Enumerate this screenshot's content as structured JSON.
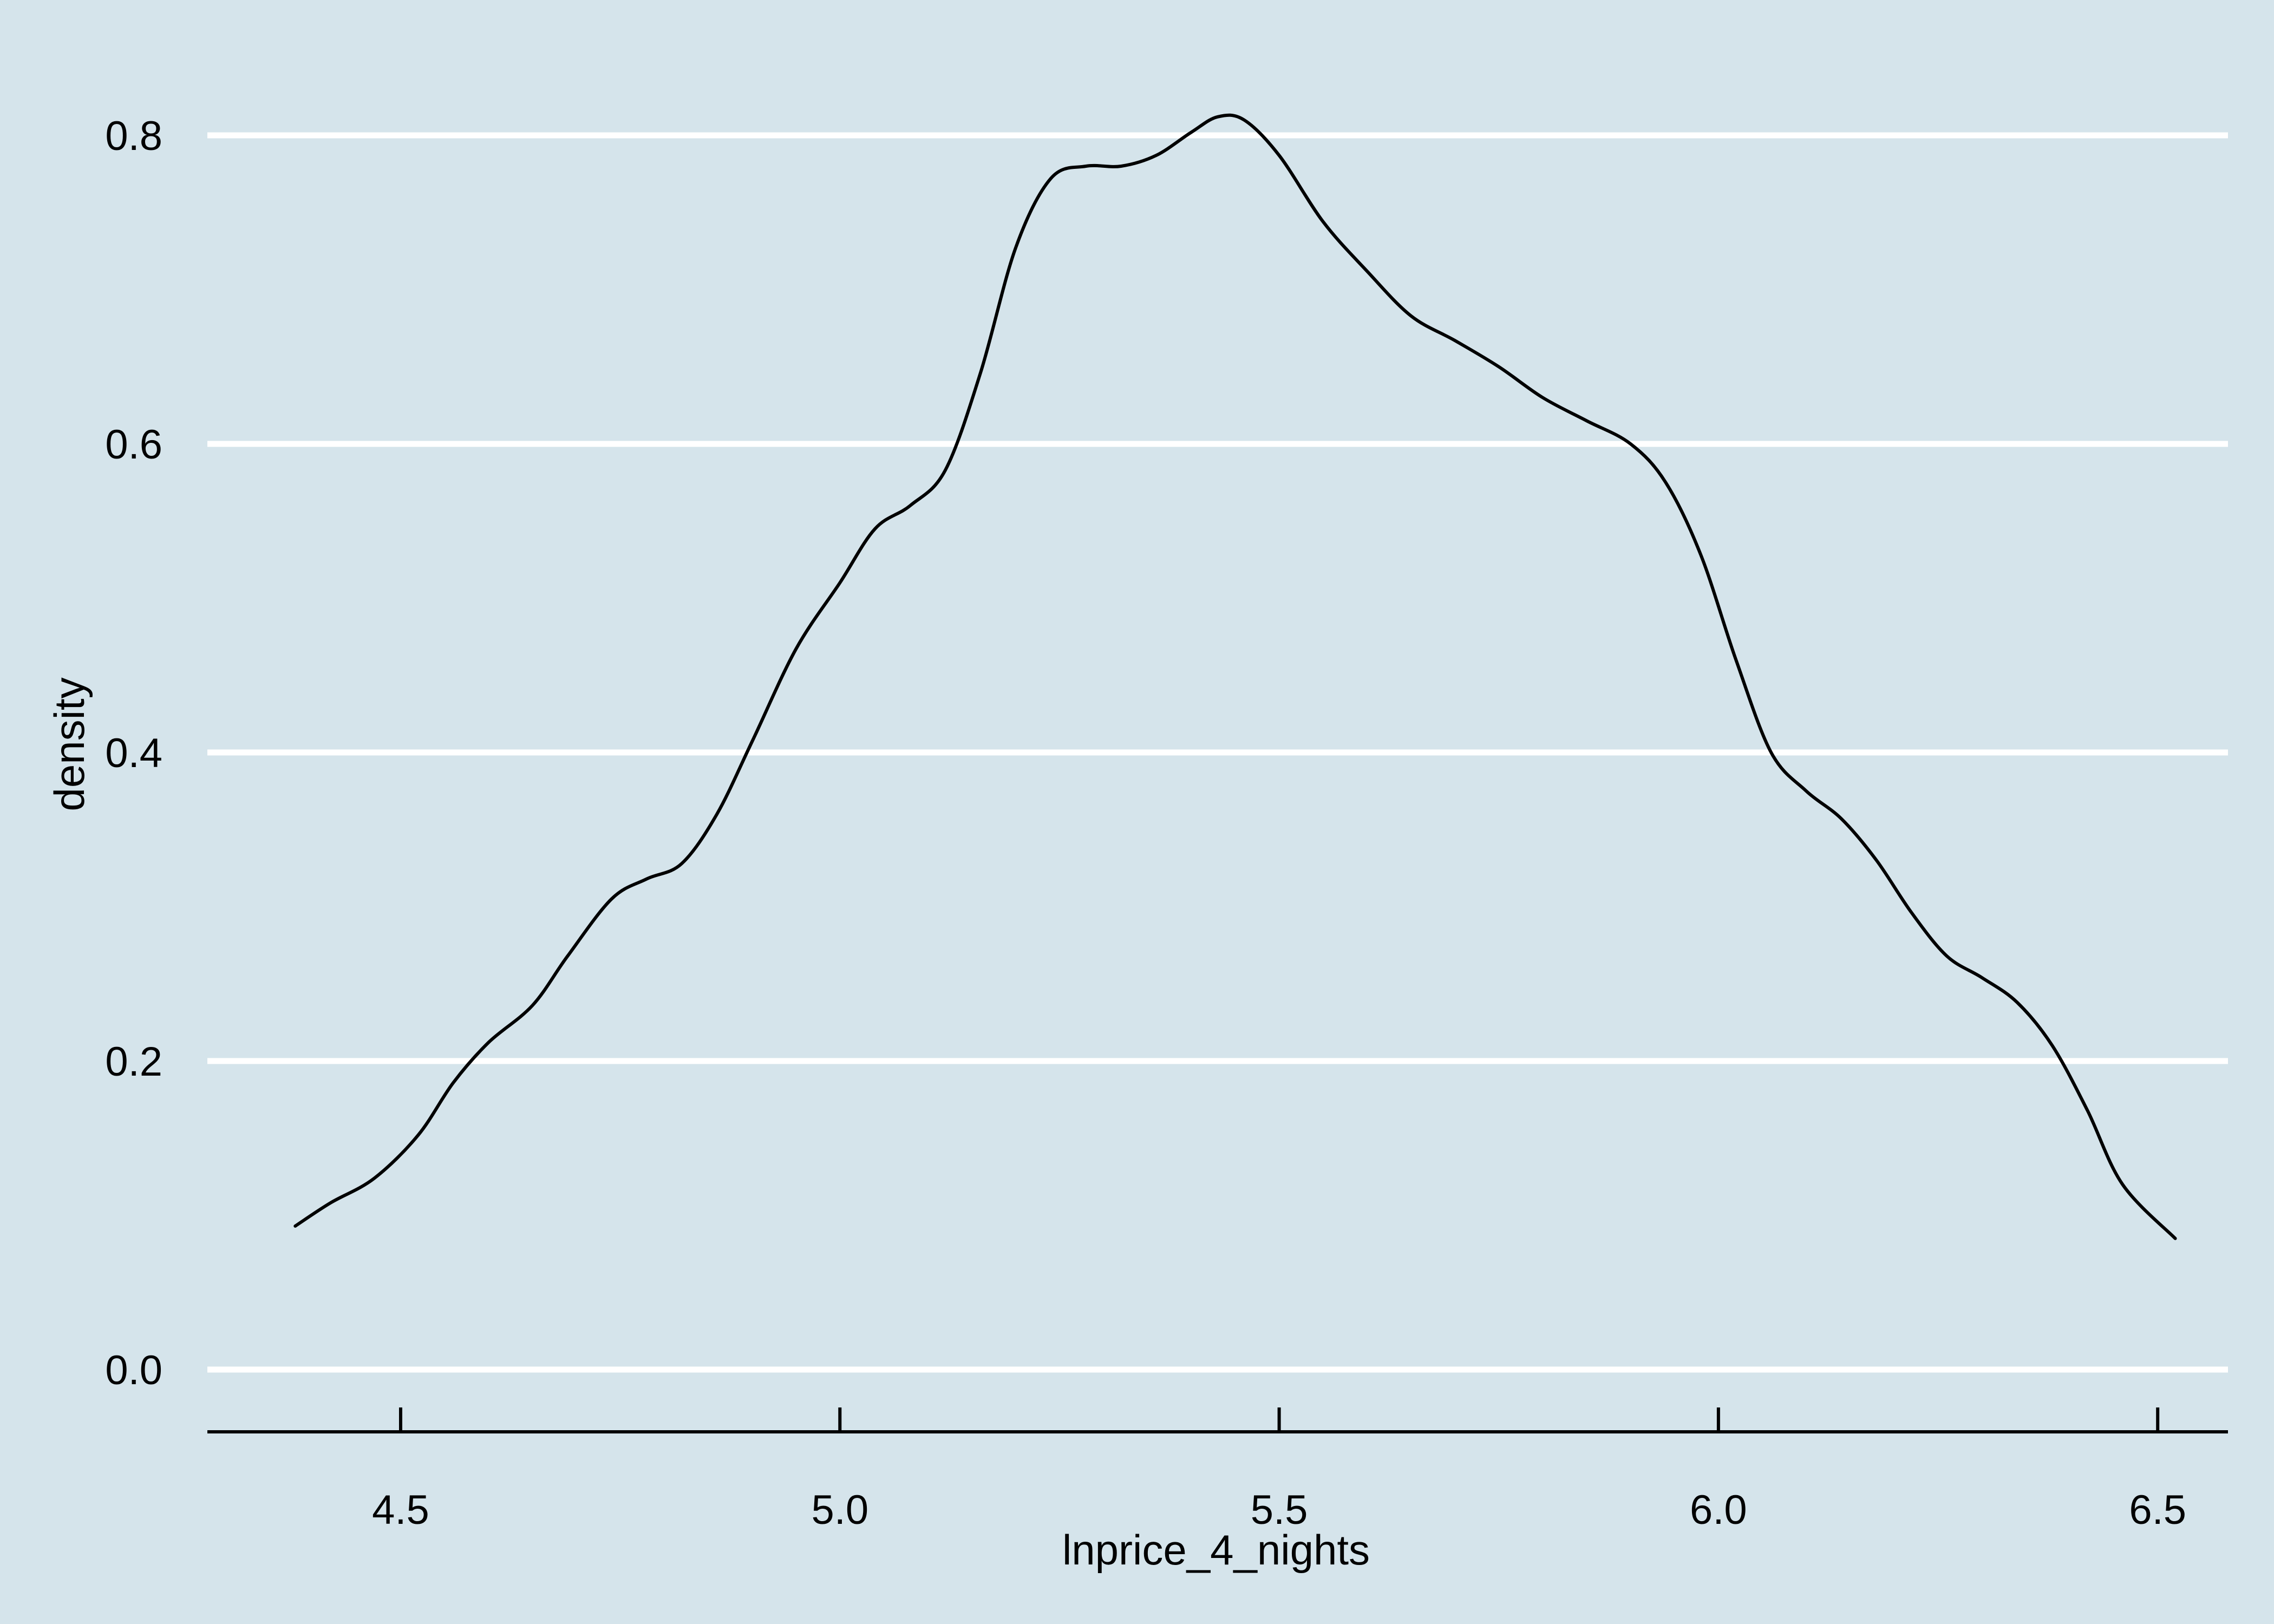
{
  "chart_data": {
    "type": "line",
    "title": "",
    "xlabel": "lnprice_4_nights",
    "ylabel": "density",
    "xlim": [
      4.28,
      6.58
    ],
    "ylim": [
      0.0,
      0.8
    ],
    "x_ticks": [
      "4.5",
      "5.0",
      "5.5",
      "6.0",
      "6.5"
    ],
    "y_ticks": [
      "0.0",
      "0.2",
      "0.4",
      "0.6",
      "0.8"
    ],
    "grid": "horizontal",
    "colors": {
      "background": "#d5e4eb",
      "grid": "#ffffff",
      "line": "#000000",
      "axis": "#000000"
    },
    "series": [
      {
        "x": [
          4.38,
          4.42,
          4.47,
          4.52,
          4.56,
          4.6,
          4.65,
          4.69,
          4.74,
          4.78,
          4.82,
          4.86,
          4.9,
          4.95,
          5.0,
          5.04,
          5.08,
          5.12,
          5.16,
          5.2,
          5.24,
          5.28,
          5.32,
          5.36,
          5.4,
          5.43,
          5.46,
          5.5,
          5.55,
          5.6,
          5.65,
          5.7,
          5.75,
          5.8,
          5.85,
          5.9,
          5.94,
          5.98,
          6.02,
          6.06,
          6.1,
          6.14,
          6.18,
          6.22,
          6.26,
          6.3,
          6.34,
          6.38,
          6.42,
          6.46,
          6.52
        ],
        "y": [
          0.093,
          0.108,
          0.124,
          0.152,
          0.186,
          0.212,
          0.236,
          0.268,
          0.305,
          0.318,
          0.328,
          0.36,
          0.407,
          0.467,
          0.51,
          0.545,
          0.56,
          0.583,
          0.646,
          0.727,
          0.772,
          0.78,
          0.78,
          0.787,
          0.802,
          0.812,
          0.81,
          0.787,
          0.744,
          0.712,
          0.683,
          0.667,
          0.65,
          0.63,
          0.615,
          0.6,
          0.575,
          0.528,
          0.46,
          0.4,
          0.375,
          0.357,
          0.33,
          0.296,
          0.268,
          0.254,
          0.238,
          0.21,
          0.168,
          0.12,
          0.085
        ]
      }
    ]
  }
}
